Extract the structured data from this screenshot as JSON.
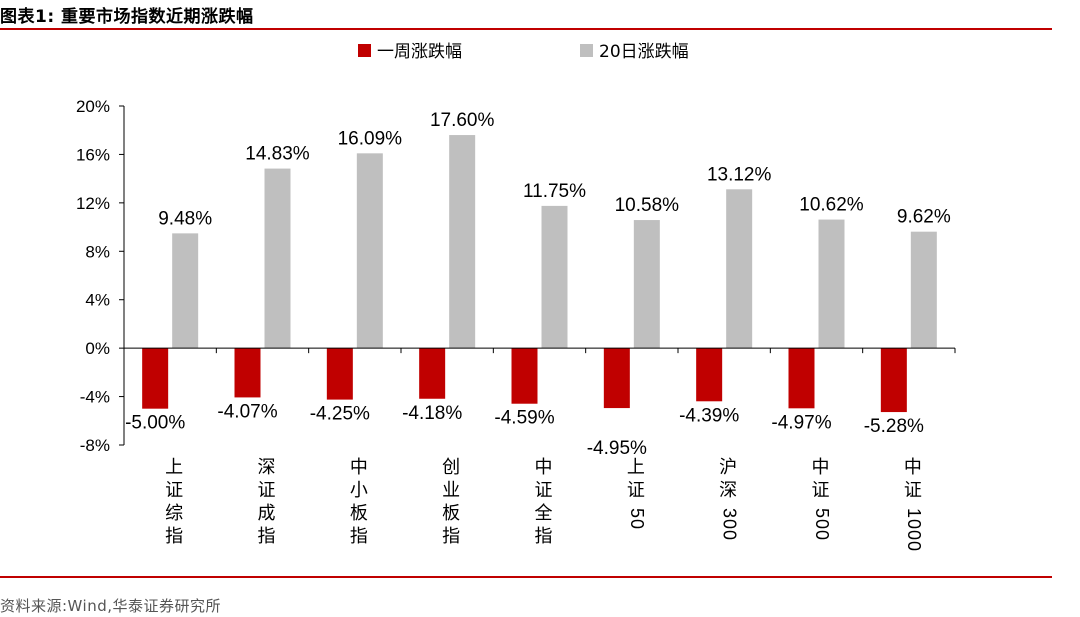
{
  "header": {
    "title": "图表1:  重要市场指数近期涨跌幅"
  },
  "footer": {
    "source": "资料来源:Wind,华泰证券研究所"
  },
  "colors": {
    "week": "#c00000",
    "twenty_day": "#bfbfbf",
    "rule": "#c00000"
  },
  "chart_data": {
    "type": "bar",
    "title": "",
    "xlabel": "",
    "ylabel": "",
    "categories": [
      "上证综指",
      "深证成指",
      "中小板指",
      "创业板指",
      "中证全指",
      "上证50",
      "沪深300",
      "中证500",
      "中证1000"
    ],
    "series": [
      {
        "name": "一周涨跌幅",
        "values": [
          -5.0,
          -4.07,
          -4.25,
          -4.18,
          -4.59,
          -4.95,
          -4.39,
          -4.97,
          -5.28
        ],
        "labels": [
          "-5.00%",
          "-4.07%",
          "-4.25%",
          "-4.18%",
          "-4.59%",
          "-4.95%",
          "-4.39%",
          "-4.97%",
          "-5.28%"
        ]
      },
      {
        "name": "20日涨跌幅",
        "values": [
          9.48,
          14.83,
          16.09,
          17.6,
          11.75,
          10.58,
          13.12,
          10.62,
          9.62
        ],
        "labels": [
          "9.48%",
          "14.83%",
          "16.09%",
          "17.60%",
          "11.75%",
          "10.58%",
          "13.12%",
          "10.62%",
          "9.62%"
        ]
      }
    ],
    "ylim": [
      -8,
      20
    ],
    "yticks": [
      20,
      16,
      12,
      8,
      4,
      0,
      -4,
      -8
    ],
    "ytick_labels": [
      "20%",
      "16%",
      "12%",
      "8%",
      "4%",
      "0%",
      "-4%",
      "-8%"
    ],
    "grid": false,
    "legend": "top-center"
  }
}
